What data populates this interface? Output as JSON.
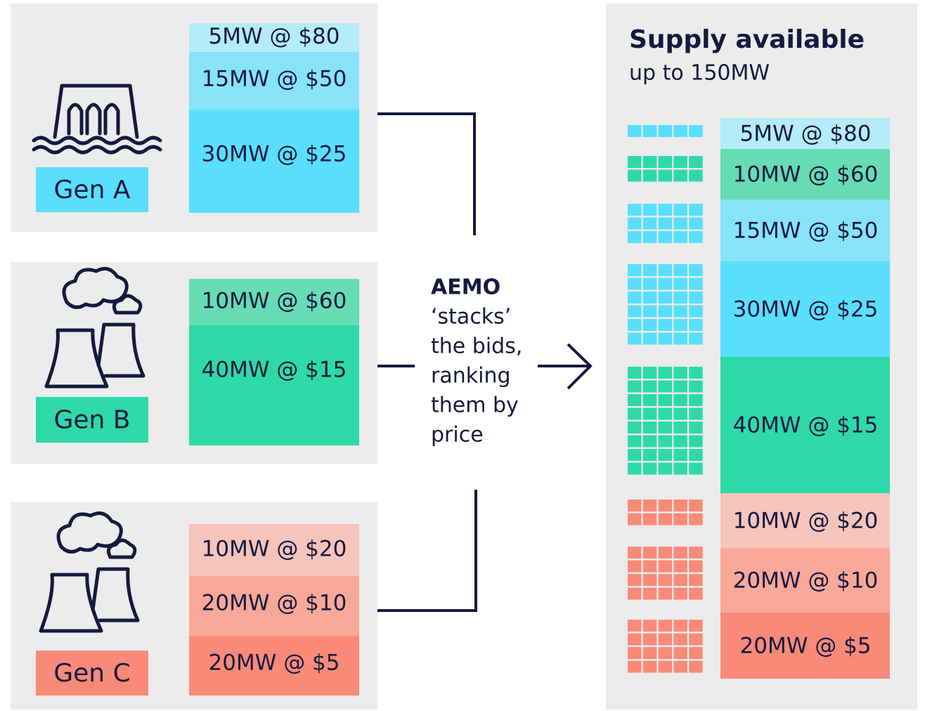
{
  "generators": [
    {
      "label": "Gen A",
      "bids": [
        "5MW @ $80",
        "15MW @ $50",
        "30MW @ $25"
      ]
    },
    {
      "label": "Gen B",
      "bids": [
        "10MW @ $60",
        "40MW @ $15"
      ]
    },
    {
      "label": "Gen C",
      "bids": [
        "10MW @ $20",
        "20MW @ $10",
        "20MW @ $5"
      ]
    }
  ],
  "process": {
    "lines": [
      "AEMO",
      "‘stacks’",
      "the bids,",
      "ranking",
      "them by",
      "price"
    ]
  },
  "supply": {
    "title": "Supply available",
    "subtitle": "up to 150MW",
    "bids": [
      "5MW @ $80",
      "10MW @ $60",
      "15MW @ $50",
      "30MW @ $25",
      "40MW @ $15",
      "10MW @ $20",
      "20MW @ $10",
      "20MW @ $5"
    ]
  }
}
